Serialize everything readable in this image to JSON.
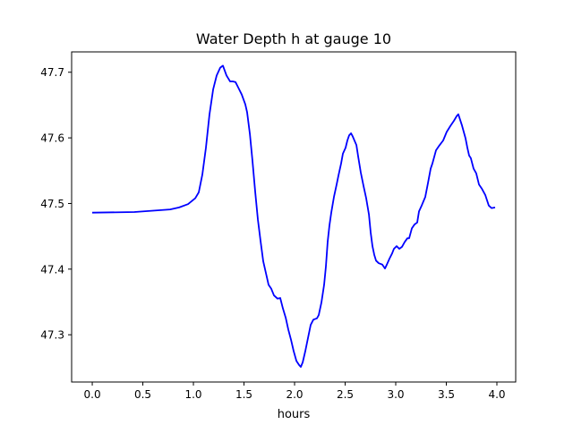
{
  "chart_data": {
    "type": "line",
    "title": "Water Depth h at gauge 10",
    "xlabel": "hours",
    "ylabel": "",
    "xlim": [
      -0.204,
      4.186
    ],
    "ylim": [
      47.228,
      47.731
    ],
    "xticks": [
      0.0,
      0.5,
      1.0,
      1.5,
      2.0,
      2.5,
      3.0,
      3.5,
      4.0
    ],
    "xtick_labels": [
      "0.0",
      "0.5",
      "1.0",
      "1.5",
      "2.0",
      "2.5",
      "3.0",
      "3.5",
      "4.0"
    ],
    "yticks": [
      47.3,
      47.4,
      47.5,
      47.6,
      47.7
    ],
    "ytick_labels": [
      "47.3",
      "47.4",
      "47.5",
      "47.6",
      "47.7"
    ],
    "grid": false,
    "series": [
      {
        "name": "h",
        "color": "#0000ff",
        "x": [
          0,
          0.416,
          0.77,
          0.858,
          0.947,
          1.018,
          1.053,
          1.088,
          1.124,
          1.159,
          1.195,
          1.23,
          1.265,
          1.292,
          1.327,
          1.363,
          1.389,
          1.416,
          1.442,
          1.478,
          1.513,
          1.531,
          1.558,
          1.584,
          1.611,
          1.637,
          1.664,
          1.69,
          1.717,
          1.743,
          1.77,
          1.796,
          1.832,
          1.858,
          1.885,
          1.912,
          1.938,
          1.965,
          1.991,
          2.018,
          2.044,
          2.062,
          2.08,
          2.106,
          2.133,
          2.159,
          2.186,
          2.221,
          2.239,
          2.265,
          2.292,
          2.31,
          2.327,
          2.345,
          2.363,
          2.389,
          2.416,
          2.434,
          2.46,
          2.478,
          2.504,
          2.522,
          2.54,
          2.558,
          2.575,
          2.611,
          2.628,
          2.655,
          2.681,
          2.708,
          2.735,
          2.752,
          2.77,
          2.788,
          2.805,
          2.832,
          2.867,
          2.894,
          2.912,
          2.938,
          2.965,
          2.982,
          3.009,
          3.035,
          3.062,
          3.088,
          3.115,
          3.133,
          3.159,
          3.186,
          3.212,
          3.23,
          3.257,
          3.292,
          3.319,
          3.345,
          3.363,
          3.398,
          3.425,
          3.469,
          3.504,
          3.54,
          3.575,
          3.602,
          3.619,
          3.655,
          3.69,
          3.708,
          3.726,
          3.743,
          3.77,
          3.796,
          3.823,
          3.85,
          3.885,
          3.92,
          3.947,
          3.982
        ],
        "y": [
          47.486,
          47.487,
          47.491,
          47.494,
          47.499,
          47.508,
          47.517,
          47.544,
          47.585,
          47.636,
          47.674,
          47.695,
          47.707,
          47.71,
          47.695,
          47.686,
          47.686,
          47.685,
          47.677,
          47.666,
          47.651,
          47.639,
          47.606,
          47.565,
          47.517,
          47.476,
          47.442,
          47.412,
          47.394,
          47.376,
          47.37,
          47.36,
          47.355,
          47.356,
          47.34,
          47.326,
          47.308,
          47.292,
          47.275,
          47.26,
          47.254,
          47.251,
          47.258,
          47.275,
          47.295,
          47.315,
          47.323,
          47.325,
          47.33,
          47.349,
          47.376,
          47.404,
          47.442,
          47.467,
          47.486,
          47.51,
          47.529,
          47.543,
          47.561,
          47.576,
          47.585,
          47.596,
          47.604,
          47.607,
          47.602,
          47.589,
          47.572,
          47.547,
          47.527,
          47.508,
          47.483,
          47.456,
          47.435,
          47.422,
          47.413,
          47.409,
          47.407,
          47.401,
          47.407,
          47.416,
          47.424,
          47.431,
          47.435,
          47.431,
          47.434,
          47.441,
          47.447,
          47.447,
          47.462,
          47.468,
          47.471,
          47.488,
          47.497,
          47.51,
          47.531,
          47.553,
          47.561,
          47.581,
          47.587,
          47.596,
          47.609,
          47.618,
          47.626,
          47.633,
          47.636,
          47.619,
          47.599,
          47.585,
          47.573,
          47.569,
          47.553,
          47.546,
          47.529,
          47.523,
          47.513,
          47.497,
          47.493,
          47.494
        ]
      }
    ]
  }
}
